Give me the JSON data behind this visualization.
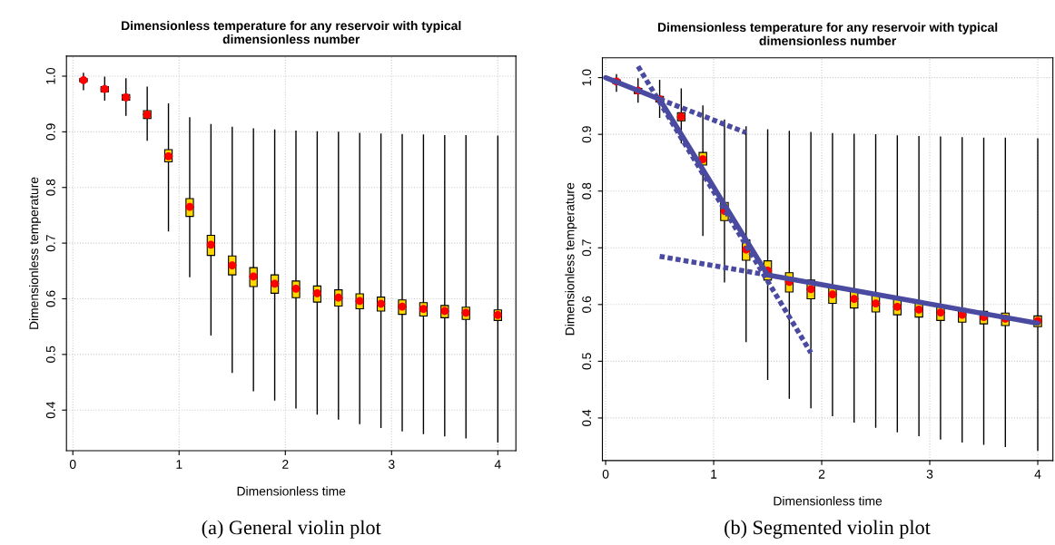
{
  "chart_data": [
    {
      "type": "box",
      "title": "Dimensionless temperature for any reservoir with typical\ndimensionless number",
      "xlabel": "Dimensionless time",
      "ylabel": "Dimensionless temperature",
      "annotations": [
        "(a) General violin plot"
      ],
      "x": [
        0.1,
        0.3,
        0.5,
        0.7,
        0.9,
        1.1,
        1.3,
        1.5,
        1.7,
        1.9,
        2.1,
        2.3,
        2.5,
        2.7,
        2.9,
        3.1,
        3.3,
        3.5,
        3.7,
        4.0
      ],
      "color": "#ffd700",
      "boxes": [
        {
          "low": 0.976,
          "q1": 0.99,
          "median": 0.993,
          "q3": 0.996,
          "high": 1.005,
          "mean": 0.993
        },
        {
          "low": 0.957,
          "q1": 0.972,
          "median": 0.977,
          "q3": 0.981,
          "high": 0.998,
          "mean": 0.977
        },
        {
          "low": 0.93,
          "q1": 0.957,
          "median": 0.962,
          "q3": 0.967,
          "high": 0.995,
          "mean": 0.962
        },
        {
          "low": 0.885,
          "q1": 0.924,
          "median": 0.931,
          "q3": 0.938,
          "high": 0.98,
          "mean": 0.931
        },
        {
          "low": 0.722,
          "q1": 0.846,
          "median": 0.856,
          "q3": 0.868,
          "high": 0.95,
          "mean": 0.856
        },
        {
          "low": 0.64,
          "q1": 0.748,
          "median": 0.765,
          "q3": 0.78,
          "high": 0.925,
          "mean": 0.765
        },
        {
          "low": 0.535,
          "q1": 0.678,
          "median": 0.697,
          "q3": 0.714,
          "high": 0.913,
          "mean": 0.697
        },
        {
          "low": 0.468,
          "q1": 0.643,
          "median": 0.66,
          "q3": 0.677,
          "high": 0.908,
          "mean": 0.66
        },
        {
          "low": 0.435,
          "q1": 0.622,
          "median": 0.64,
          "q3": 0.656,
          "high": 0.905,
          "mean": 0.64
        },
        {
          "low": 0.418,
          "q1": 0.61,
          "median": 0.627,
          "q3": 0.643,
          "high": 0.903,
          "mean": 0.627
        },
        {
          "low": 0.404,
          "q1": 0.602,
          "median": 0.618,
          "q3": 0.632,
          "high": 0.901,
          "mean": 0.618
        },
        {
          "low": 0.393,
          "q1": 0.594,
          "median": 0.61,
          "q3": 0.623,
          "high": 0.9,
          "mean": 0.61
        },
        {
          "low": 0.384,
          "q1": 0.587,
          "median": 0.602,
          "q3": 0.616,
          "high": 0.899,
          "mean": 0.602
        },
        {
          "low": 0.376,
          "q1": 0.582,
          "median": 0.596,
          "q3": 0.609,
          "high": 0.897,
          "mean": 0.596
        },
        {
          "low": 0.369,
          "q1": 0.578,
          "median": 0.591,
          "q3": 0.603,
          "high": 0.896,
          "mean": 0.591
        },
        {
          "low": 0.363,
          "q1": 0.572,
          "median": 0.586,
          "q3": 0.598,
          "high": 0.895,
          "mean": 0.586
        },
        {
          "low": 0.358,
          "q1": 0.569,
          "median": 0.582,
          "q3": 0.593,
          "high": 0.894,
          "mean": 0.582
        },
        {
          "low": 0.354,
          "q1": 0.566,
          "median": 0.578,
          "q3": 0.588,
          "high": 0.893,
          "mean": 0.578
        },
        {
          "low": 0.35,
          "q1": 0.563,
          "median": 0.575,
          "q3": 0.585,
          "high": 0.893,
          "mean": 0.575
        },
        {
          "low": 0.343,
          "q1": 0.561,
          "median": 0.571,
          "q3": 0.58,
          "high": 0.892,
          "mean": 0.571
        }
      ],
      "xlim": [
        -0.06,
        4.17
      ],
      "ylim": [
        0.327,
        1.036
      ],
      "xticks": [
        0,
        1,
        2,
        3,
        4
      ],
      "yticks": [
        0.4,
        0.5,
        0.6,
        0.7,
        0.8,
        0.9,
        {
          "value": 1.0,
          "label": "1.0"
        }
      ],
      "grid": true
    },
    {
      "type": "box",
      "title": "Dimensionless temperature for any reservoir with typical\ndimensionless number",
      "xlabel": "Dimensionless time",
      "ylabel": "Dimensionless temperature",
      "annotations": [
        "(b) Segmented violin plot"
      ],
      "x": [
        0.1,
        0.3,
        0.5,
        0.7,
        0.9,
        1.1,
        1.3,
        1.5,
        1.7,
        1.9,
        2.1,
        2.3,
        2.5,
        2.7,
        2.9,
        3.1,
        3.3,
        3.5,
        3.7,
        4.0
      ],
      "color": "#ffd700",
      "boxes": [
        {
          "low": 0.976,
          "q1": 0.99,
          "median": 0.993,
          "q3": 0.996,
          "high": 1.005,
          "mean": 0.993
        },
        {
          "low": 0.957,
          "q1": 0.972,
          "median": 0.977,
          "q3": 0.981,
          "high": 0.998,
          "mean": 0.977
        },
        {
          "low": 0.93,
          "q1": 0.957,
          "median": 0.962,
          "q3": 0.967,
          "high": 0.995,
          "mean": 0.962
        },
        {
          "low": 0.885,
          "q1": 0.924,
          "median": 0.931,
          "q3": 0.938,
          "high": 0.98,
          "mean": 0.931
        },
        {
          "low": 0.722,
          "q1": 0.846,
          "median": 0.856,
          "q3": 0.868,
          "high": 0.95,
          "mean": 0.856
        },
        {
          "low": 0.64,
          "q1": 0.748,
          "median": 0.765,
          "q3": 0.78,
          "high": 0.925,
          "mean": 0.765
        },
        {
          "low": 0.535,
          "q1": 0.678,
          "median": 0.697,
          "q3": 0.714,
          "high": 0.913,
          "mean": 0.697
        },
        {
          "low": 0.468,
          "q1": 0.643,
          "median": 0.66,
          "q3": 0.677,
          "high": 0.908,
          "mean": 0.66
        },
        {
          "low": 0.435,
          "q1": 0.622,
          "median": 0.64,
          "q3": 0.656,
          "high": 0.905,
          "mean": 0.64
        },
        {
          "low": 0.418,
          "q1": 0.61,
          "median": 0.627,
          "q3": 0.643,
          "high": 0.903,
          "mean": 0.627
        },
        {
          "low": 0.404,
          "q1": 0.602,
          "median": 0.618,
          "q3": 0.632,
          "high": 0.901,
          "mean": 0.618
        },
        {
          "low": 0.393,
          "q1": 0.594,
          "median": 0.61,
          "q3": 0.623,
          "high": 0.9,
          "mean": 0.61
        },
        {
          "low": 0.384,
          "q1": 0.587,
          "median": 0.602,
          "q3": 0.616,
          "high": 0.899,
          "mean": 0.602
        },
        {
          "low": 0.376,
          "q1": 0.582,
          "median": 0.596,
          "q3": 0.609,
          "high": 0.897,
          "mean": 0.596
        },
        {
          "low": 0.369,
          "q1": 0.578,
          "median": 0.591,
          "q3": 0.603,
          "high": 0.896,
          "mean": 0.591
        },
        {
          "low": 0.363,
          "q1": 0.572,
          "median": 0.586,
          "q3": 0.598,
          "high": 0.895,
          "mean": 0.586
        },
        {
          "low": 0.358,
          "q1": 0.569,
          "median": 0.582,
          "q3": 0.593,
          "high": 0.894,
          "mean": 0.582
        },
        {
          "low": 0.354,
          "q1": 0.566,
          "median": 0.578,
          "q3": 0.588,
          "high": 0.893,
          "mean": 0.578
        },
        {
          "low": 0.35,
          "q1": 0.563,
          "median": 0.575,
          "q3": 0.585,
          "high": 0.893,
          "mean": 0.575
        },
        {
          "low": 0.343,
          "q1": 0.561,
          "median": 0.571,
          "q3": 0.58,
          "high": 0.892,
          "mean": 0.571
        }
      ],
      "series": [
        {
          "type": "line",
          "color": "#4a4aa0",
          "line_style": "solid",
          "x": [
            0,
            0.5,
            1.5,
            4.0
          ],
          "values": [
            1.0,
            0.962,
            0.652,
            0.567
          ]
        },
        {
          "type": "line",
          "color": "#4a4aa0",
          "line_style": "dotted",
          "x": [
            0.3,
            1.9
          ],
          "values": [
            1.02,
            0.515
          ]
        },
        {
          "type": "line",
          "color": "#4a4aa0",
          "line_style": "dotted",
          "x": [
            0.5,
            1.3
          ],
          "values": [
            0.962,
            0.903
          ]
        },
        {
          "type": "line",
          "color": "#4a4aa0",
          "line_style": "dotted",
          "x": [
            0.5,
            1.5
          ],
          "values": [
            0.685,
            0.652
          ]
        }
      ],
      "xlim": [
        -0.03,
        4.14
      ],
      "ylim": [
        0.325,
        1.035
      ],
      "xticks": [
        0,
        1,
        2,
        3,
        4
      ],
      "yticks": [
        0.4,
        0.5,
        0.6,
        0.7,
        0.8,
        0.9,
        {
          "value": 1.0,
          "label": "1.0"
        }
      ],
      "grid": true
    }
  ]
}
